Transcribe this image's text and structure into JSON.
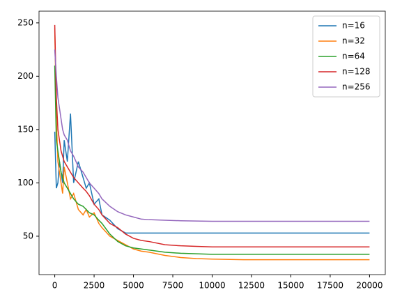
{
  "chart_data": {
    "type": "line",
    "x": [
      0,
      100,
      200,
      300,
      400,
      500,
      600,
      800,
      1000,
      1200,
      1500,
      1800,
      2000,
      2200,
      2500,
      2800,
      3000,
      3500,
      4000,
      4500,
      5000,
      5500,
      6000,
      7000,
      8000,
      9000,
      10000,
      12000,
      15000,
      17500,
      20000
    ],
    "series": [
      {
        "name": "n=16",
        "color": "#1f77b4",
        "values": [
          148,
          95,
          100,
          120,
          110,
          100,
          140,
          120,
          165,
          100,
          120,
          105,
          95,
          100,
          80,
          85,
          70,
          65,
          57,
          53,
          53,
          53,
          53,
          53,
          53,
          53,
          53,
          53,
          53,
          53,
          53
        ]
      },
      {
        "name": "n=32",
        "color": "#ff7f0e",
        "values": [
          245,
          160,
          120,
          110,
          100,
          90,
          115,
          100,
          85,
          90,
          75,
          70,
          75,
          68,
          72,
          62,
          58,
          50,
          46,
          42,
          38,
          36,
          35,
          32,
          30,
          29,
          28.5,
          28,
          28,
          28,
          28
        ]
      },
      {
        "name": "n=64",
        "color": "#2ca02c",
        "values": [
          210,
          140,
          130,
          120,
          110,
          105,
          100,
          95,
          90,
          85,
          80,
          78,
          75,
          72,
          70,
          65,
          62,
          52,
          45,
          41,
          39,
          38,
          37,
          35,
          34,
          33.5,
          33,
          33,
          33,
          33,
          33
        ]
      },
      {
        "name": "n=128",
        "color": "#d62728",
        "values": [
          248,
          180,
          150,
          140,
          130,
          125,
          120,
          115,
          110,
          105,
          100,
          95,
          92,
          88,
          80,
          75,
          70,
          62,
          58,
          52,
          48,
          46,
          45,
          42,
          41,
          40.5,
          40,
          40,
          40,
          40,
          40
        ]
      },
      {
        "name": "n=256",
        "color": "#9467bd",
        "values": [
          225,
          200,
          180,
          170,
          160,
          150,
          145,
          140,
          130,
          125,
          115,
          110,
          105,
          100,
          95,
          90,
          85,
          78,
          73,
          70,
          68,
          66,
          65.5,
          65,
          64.5,
          64.2,
          64,
          64,
          64,
          64,
          64
        ]
      }
    ],
    "xlim": [
      -1000,
      21000
    ],
    "xticks": [
      0,
      2500,
      5000,
      7500,
      10000,
      12500,
      15000,
      17500,
      20000
    ],
    "ylim": [
      14,
      261
    ],
    "yticks": [
      50,
      100,
      150,
      200,
      250
    ],
    "legend": "upper right"
  }
}
